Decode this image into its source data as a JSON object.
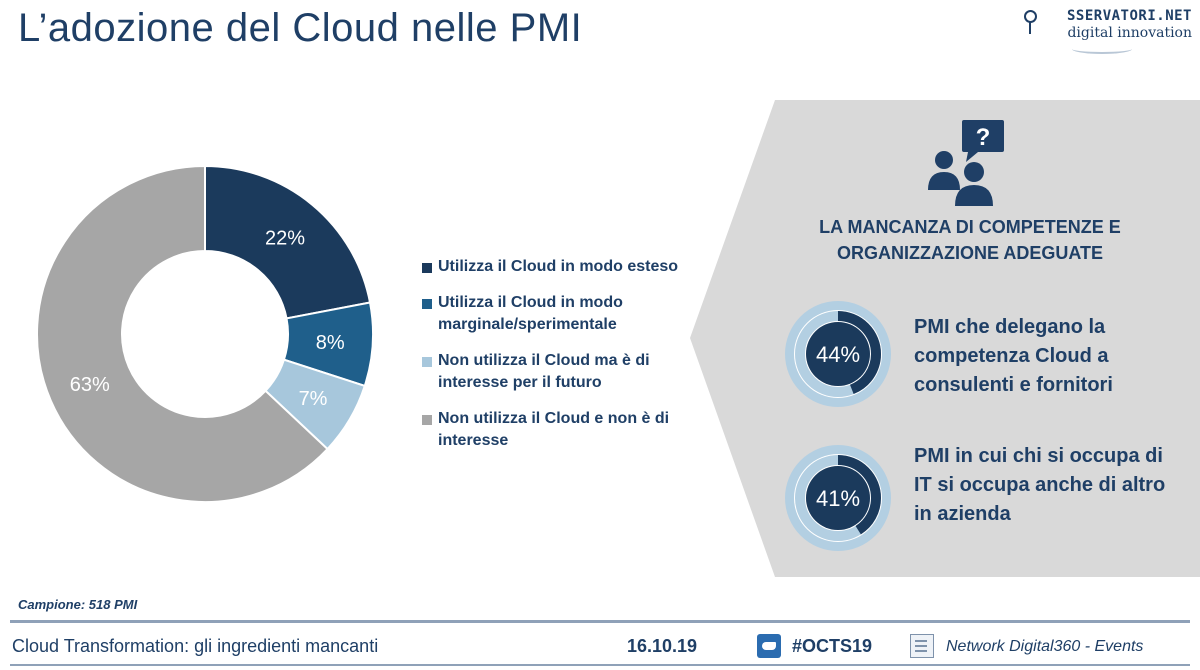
{
  "header": {
    "title": "L’adozione del Cloud nelle PMI",
    "logo_line1": "SSERVATORI.NET",
    "logo_line2": "digital innovation"
  },
  "chart_data": {
    "type": "pie",
    "title": "",
    "series": [
      {
        "name": "Utilizza il Cloud in modo esteso",
        "value": 22,
        "label": "22%",
        "color": "#1b3a5c"
      },
      {
        "name": "Utilizza il Cloud in modo marginale/sperimentale",
        "value": 8,
        "label": "8%",
        "color": "#1f5f8b"
      },
      {
        "name": "Non utilizza il Cloud ma è di interesse per il futuro",
        "value": 7,
        "label": "7%",
        "color": "#a7c7dc"
      },
      {
        "name": "Non utilizza il Cloud e non è di interesse",
        "value": 63,
        "label": "63%",
        "color": "#a6a6a6"
      }
    ],
    "legend_placement": "right"
  },
  "legend": {
    "items": [
      {
        "label": "Utilizza il Cloud in modo esteso"
      },
      {
        "label": "Utilizza il Cloud in modo marginale/sperimentale"
      },
      {
        "label": "Non utilizza il Cloud ma è di interesse per il futuro"
      },
      {
        "label": "Non utilizza il Cloud e non è di interesse"
      }
    ]
  },
  "panel": {
    "icon": "people-question-icon",
    "heading_line1": "LA MANCANZA DI COMPETENZE E",
    "heading_line2": "ORGANIZZAZIONE ADEGUATE",
    "stats": [
      {
        "value": 44,
        "label": "44%",
        "text": "PMI che delegano la competenza Cloud a consulenti e fornitori"
      },
      {
        "value": 41,
        "label": "41%",
        "text": "PMI in cui chi si occupa di IT si occupa anche di altro in azienda"
      }
    ],
    "colors": {
      "background": "#d9d9d9",
      "ring_fill": "#1b3a5c",
      "ring_track": "#b3cfe2"
    }
  },
  "footer": {
    "sample": "Campione: 518 PMI",
    "title": "Cloud Transformation: gli ingredienti mancanti",
    "date": "16.10.19",
    "hashtag": "#OCTS19",
    "events": "Network Digital360 - Events"
  }
}
